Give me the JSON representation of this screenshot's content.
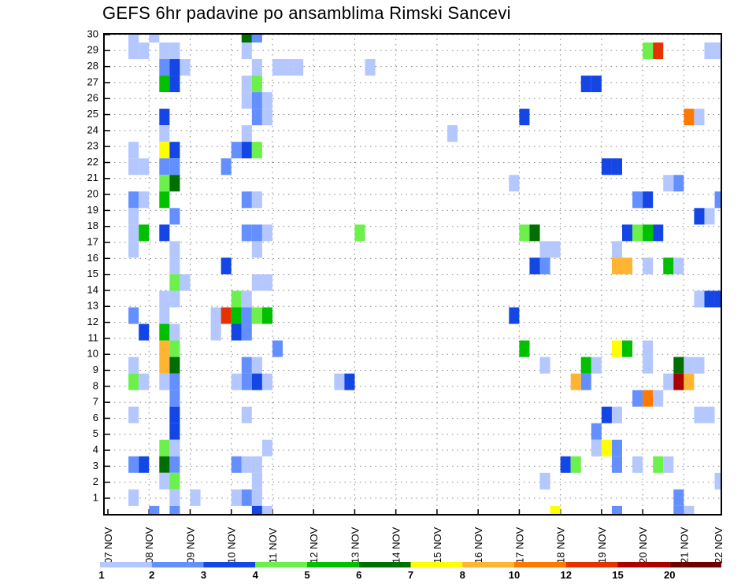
{
  "chart_data": {
    "type": "heatmap",
    "title": "GEFS 6hr padavine po ansamblima Rimski Sancevi",
    "xlabel": "",
    "ylabel": "",
    "x_ticks": [
      "07 NOV",
      "08 NOV",
      "09 NOV",
      "10 NOV",
      "11 NOV",
      "12 NOV",
      "13 NOV",
      "14 NOV",
      "15 NOV",
      "16 NOV",
      "17 NOV",
      "18 NOV",
      "19 NOV",
      "20 NOV",
      "21 NOV",
      "22 NOV"
    ],
    "y_ticks": [
      "1",
      "2",
      "3",
      "4",
      "5",
      "6",
      "7",
      "8",
      "9",
      "10",
      "11",
      "12",
      "13",
      "14",
      "15",
      "16",
      "17",
      "18",
      "19",
      "20",
      "21",
      "22",
      "23",
      "24",
      "25",
      "26",
      "27",
      "28",
      "29",
      "30"
    ],
    "x_steps_per_day": 4,
    "x_range_steps": [
      0,
      60
    ],
    "y_range": [
      1,
      30
    ],
    "grid": true,
    "legend": {
      "placement": "bottom",
      "labels": [
        "1",
        "2",
        "3",
        "4",
        "5",
        "6",
        "7",
        "8",
        "10",
        "12",
        "15",
        "20"
      ],
      "colors": [
        "#b4c8ff",
        "#6490ff",
        "#1446e6",
        "#6cf04c",
        "#00c000",
        "#006e00",
        "#ffff00",
        "#ffb432",
        "#ff7800",
        "#e63200",
        "#aa0000",
        "#700000"
      ]
    },
    "cells_note": "each cell = [time_step (6h from 07 NOV 00z), member, color_class_index]",
    "cells": [
      [
        2,
        30,
        0
      ],
      [
        4,
        30,
        0
      ],
      [
        13,
        30,
        5
      ],
      [
        14,
        30,
        1
      ],
      [
        2,
        29,
        0
      ],
      [
        3,
        29,
        0
      ],
      [
        5,
        29,
        0
      ],
      [
        6,
        29,
        0
      ],
      [
        13,
        29,
        0
      ],
      [
        52,
        29,
        3
      ],
      [
        53,
        29,
        9
      ],
      [
        58,
        29,
        0
      ],
      [
        59,
        29,
        0
      ],
      [
        5,
        28,
        1
      ],
      [
        6,
        28,
        2
      ],
      [
        7,
        28,
        0
      ],
      [
        14,
        28,
        0
      ],
      [
        16,
        28,
        0
      ],
      [
        17,
        28,
        0
      ],
      [
        18,
        28,
        0
      ],
      [
        25,
        28,
        0
      ],
      [
        5,
        27,
        4
      ],
      [
        6,
        27,
        2
      ],
      [
        13,
        27,
        0
      ],
      [
        14,
        27,
        3
      ],
      [
        46,
        27,
        2
      ],
      [
        47,
        27,
        2
      ],
      [
        13,
        26,
        0
      ],
      [
        14,
        26,
        1
      ],
      [
        15,
        26,
        0
      ],
      [
        5,
        25,
        2
      ],
      [
        14,
        25,
        1
      ],
      [
        15,
        25,
        0
      ],
      [
        40,
        25,
        2
      ],
      [
        56,
        25,
        8
      ],
      [
        57,
        25,
        0
      ],
      [
        5,
        24,
        0
      ],
      [
        13,
        24,
        0
      ],
      [
        33,
        24,
        0
      ],
      [
        2,
        23,
        0
      ],
      [
        5,
        23,
        6
      ],
      [
        6,
        23,
        2
      ],
      [
        12,
        23,
        1
      ],
      [
        13,
        23,
        2
      ],
      [
        14,
        23,
        3
      ],
      [
        2,
        22,
        0
      ],
      [
        3,
        22,
        0
      ],
      [
        5,
        22,
        1
      ],
      [
        6,
        22,
        1
      ],
      [
        11,
        22,
        1
      ],
      [
        48,
        22,
        2
      ],
      [
        49,
        22,
        2
      ],
      [
        5,
        21,
        3
      ],
      [
        6,
        21,
        5
      ],
      [
        39,
        21,
        0
      ],
      [
        54,
        21,
        0
      ],
      [
        55,
        21,
        1
      ],
      [
        2,
        20,
        1
      ],
      [
        3,
        20,
        0
      ],
      [
        5,
        20,
        4
      ],
      [
        13,
        20,
        1
      ],
      [
        14,
        20,
        0
      ],
      [
        51,
        20,
        1
      ],
      [
        52,
        20,
        2
      ],
      [
        59,
        20,
        1
      ],
      [
        2,
        19,
        0
      ],
      [
        6,
        19,
        1
      ],
      [
        57,
        19,
        2
      ],
      [
        58,
        19,
        0
      ],
      [
        2,
        18,
        0
      ],
      [
        3,
        18,
        4
      ],
      [
        5,
        18,
        2
      ],
      [
        13,
        18,
        1
      ],
      [
        14,
        18,
        1
      ],
      [
        15,
        18,
        0
      ],
      [
        24,
        18,
        3
      ],
      [
        40,
        18,
        3
      ],
      [
        41,
        18,
        5
      ],
      [
        50,
        18,
        2
      ],
      [
        51,
        18,
        3
      ],
      [
        52,
        18,
        4
      ],
      [
        53,
        18,
        2
      ],
      [
        2,
        17,
        0
      ],
      [
        6,
        17,
        0
      ],
      [
        14,
        17,
        0
      ],
      [
        42,
        17,
        0
      ],
      [
        43,
        17,
        0
      ],
      [
        49,
        17,
        0
      ],
      [
        6,
        16,
        0
      ],
      [
        11,
        16,
        2
      ],
      [
        41,
        16,
        2
      ],
      [
        42,
        16,
        1
      ],
      [
        49,
        16,
        7
      ],
      [
        50,
        16,
        7
      ],
      [
        52,
        16,
        0
      ],
      [
        54,
        16,
        4
      ],
      [
        55,
        16,
        0
      ],
      [
        6,
        15,
        3
      ],
      [
        7,
        15,
        0
      ],
      [
        14,
        15,
        0
      ],
      [
        15,
        15,
        0
      ],
      [
        5,
        14,
        0
      ],
      [
        6,
        14,
        0
      ],
      [
        12,
        14,
        3
      ],
      [
        13,
        14,
        0
      ],
      [
        57,
        14,
        0
      ],
      [
        58,
        14,
        2
      ],
      [
        59,
        14,
        2
      ],
      [
        2,
        13,
        1
      ],
      [
        5,
        13,
        0
      ],
      [
        10,
        13,
        0
      ],
      [
        11,
        13,
        9
      ],
      [
        12,
        13,
        4
      ],
      [
        13,
        13,
        1
      ],
      [
        14,
        13,
        3
      ],
      [
        15,
        13,
        4
      ],
      [
        39,
        13,
        2
      ],
      [
        3,
        12,
        2
      ],
      [
        5,
        12,
        4
      ],
      [
        6,
        12,
        0
      ],
      [
        10,
        12,
        0
      ],
      [
        12,
        12,
        2
      ],
      [
        13,
        12,
        1
      ],
      [
        5,
        11,
        7
      ],
      [
        6,
        11,
        3
      ],
      [
        16,
        11,
        1
      ],
      [
        40,
        11,
        4
      ],
      [
        49,
        11,
        6
      ],
      [
        50,
        11,
        4
      ],
      [
        52,
        11,
        0
      ],
      [
        2,
        10,
        0
      ],
      [
        5,
        10,
        7
      ],
      [
        6,
        10,
        5
      ],
      [
        13,
        10,
        1
      ],
      [
        14,
        10,
        0
      ],
      [
        42,
        10,
        0
      ],
      [
        46,
        10,
        4
      ],
      [
        47,
        10,
        0
      ],
      [
        52,
        10,
        0
      ],
      [
        55,
        10,
        5
      ],
      [
        56,
        10,
        0
      ],
      [
        57,
        10,
        0
      ],
      [
        2,
        9,
        3
      ],
      [
        3,
        9,
        0
      ],
      [
        5,
        9,
        0
      ],
      [
        6,
        9,
        1
      ],
      [
        12,
        9,
        0
      ],
      [
        13,
        9,
        1
      ],
      [
        14,
        9,
        2
      ],
      [
        15,
        9,
        0
      ],
      [
        22,
        9,
        0
      ],
      [
        23,
        9,
        2
      ],
      [
        45,
        9,
        7
      ],
      [
        46,
        9,
        1
      ],
      [
        54,
        9,
        0
      ],
      [
        55,
        9,
        10
      ],
      [
        56,
        9,
        7
      ],
      [
        6,
        8,
        1
      ],
      [
        51,
        8,
        1
      ],
      [
        52,
        8,
        8
      ],
      [
        53,
        8,
        0
      ],
      [
        2,
        7,
        0
      ],
      [
        6,
        7,
        2
      ],
      [
        13,
        7,
        0
      ],
      [
        48,
        7,
        2
      ],
      [
        49,
        7,
        0
      ],
      [
        57,
        7,
        0
      ],
      [
        58,
        7,
        0
      ],
      [
        6,
        6,
        2
      ],
      [
        47,
        6,
        1
      ],
      [
        5,
        5,
        3
      ],
      [
        6,
        5,
        0
      ],
      [
        15,
        5,
        0
      ],
      [
        47,
        5,
        0
      ],
      [
        48,
        5,
        6
      ],
      [
        49,
        5,
        1
      ],
      [
        2,
        4,
        1
      ],
      [
        3,
        4,
        2
      ],
      [
        5,
        4,
        5
      ],
      [
        6,
        4,
        1
      ],
      [
        12,
        4,
        1
      ],
      [
        13,
        4,
        0
      ],
      [
        14,
        4,
        0
      ],
      [
        44,
        4,
        2
      ],
      [
        45,
        4,
        3
      ],
      [
        49,
        4,
        1
      ],
      [
        51,
        4,
        0
      ],
      [
        53,
        4,
        3
      ],
      [
        54,
        4,
        0
      ],
      [
        5,
        3,
        0
      ],
      [
        6,
        3,
        3
      ],
      [
        14,
        3,
        0
      ],
      [
        42,
        3,
        0
      ],
      [
        59,
        3,
        0
      ],
      [
        2,
        2,
        0
      ],
      [
        6,
        2,
        0
      ],
      [
        8,
        2,
        0
      ],
      [
        12,
        2,
        0
      ],
      [
        13,
        2,
        1
      ],
      [
        14,
        2,
        0
      ],
      [
        55,
        2,
        1
      ],
      [
        4,
        1,
        1
      ],
      [
        6,
        1,
        1
      ],
      [
        14,
        1,
        2
      ],
      [
        15,
        1,
        0
      ],
      [
        43,
        1,
        6
      ],
      [
        49,
        1,
        1
      ],
      [
        55,
        1,
        1
      ],
      [
        56,
        1,
        0
      ]
    ]
  }
}
